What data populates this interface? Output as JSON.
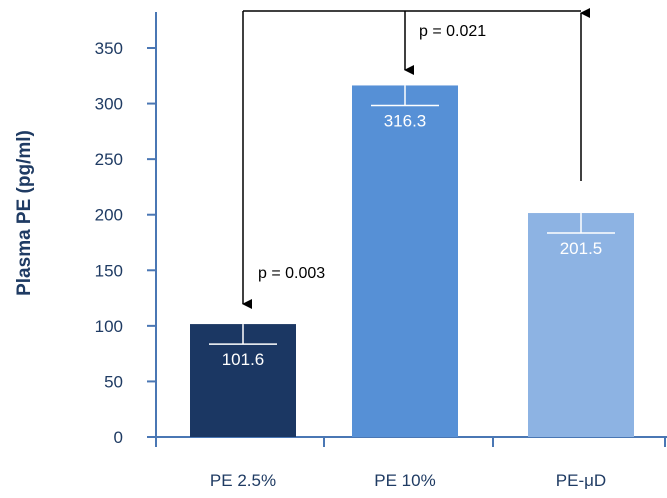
{
  "chart_data": {
    "type": "bar",
    "title": "",
    "xlabel": "",
    "ylabel": "Plasma PE (pg/ml)",
    "ylim": [
      0,
      350
    ],
    "yticks": [
      0,
      50,
      100,
      150,
      200,
      250,
      300,
      350
    ],
    "categories": [
      "PE 2.5%",
      "PE 10%",
      "PE-μD"
    ],
    "values": [
      101.6,
      316.3,
      201.5
    ],
    "error_bars": [
      18,
      18,
      18
    ],
    "data_labels": [
      "101.6",
      "316.3",
      "201.5"
    ],
    "bar_colors": [
      "#1b3763",
      "#5690d6",
      "#8db3e3"
    ],
    "grid": false,
    "annotations": [
      {
        "text": "p = 0.003",
        "from": "PE 2.5%",
        "to": "PE-μD"
      },
      {
        "text": "p = 0.021",
        "from": "PE 10%",
        "to": "PE-μD"
      }
    ]
  }
}
